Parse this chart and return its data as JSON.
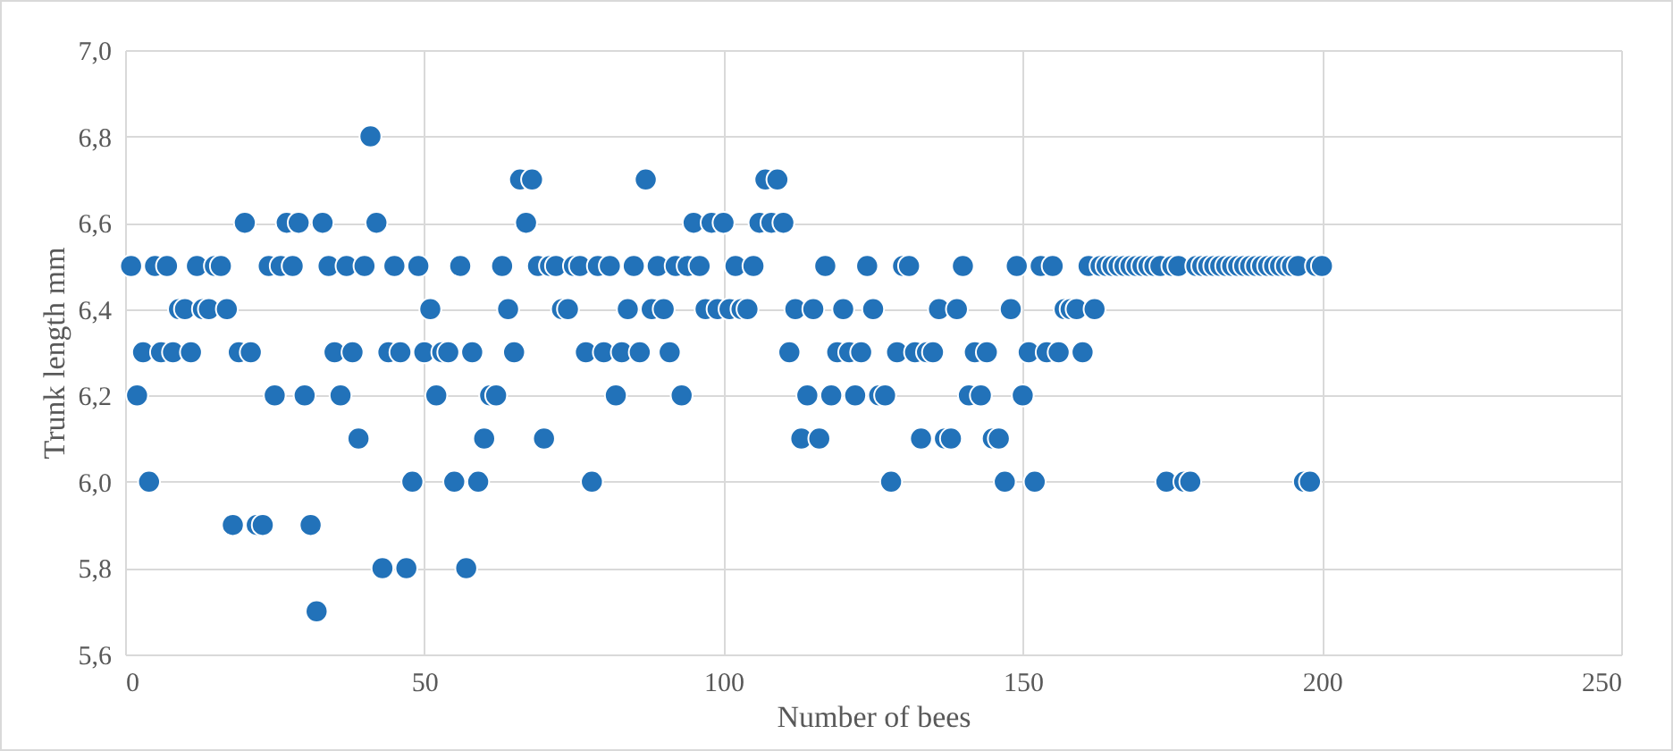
{
  "chart_data": {
    "type": "scatter",
    "xlabel": "Number of bees",
    "ylabel": "Trunk length mm",
    "x": [
      1,
      2,
      3,
      4,
      5,
      6,
      7,
      8,
      9,
      10,
      11,
      12,
      13,
      14,
      15,
      16,
      17,
      18,
      19,
      20,
      21,
      22,
      23,
      24,
      25,
      26,
      27,
      28,
      29,
      30,
      31,
      32,
      33,
      34,
      35,
      36,
      37,
      38,
      39,
      40,
      41,
      42,
      43,
      44,
      45,
      46,
      47,
      48,
      49,
      50,
      51,
      52,
      53,
      54,
      55,
      56,
      57,
      58,
      59,
      60,
      61,
      62,
      63,
      64,
      65,
      66,
      67,
      68,
      69,
      70,
      71,
      72,
      73,
      74,
      75,
      76,
      77,
      78,
      79,
      80,
      81,
      82,
      83,
      84,
      85,
      86,
      87,
      88,
      89,
      90,
      91,
      92,
      93,
      94,
      95,
      96,
      97,
      98,
      99,
      100,
      101,
      102,
      103,
      104,
      105,
      106,
      107,
      108,
      109,
      110,
      111,
      112,
      113,
      114,
      115,
      116,
      117,
      118,
      119,
      120,
      121,
      122,
      123,
      124,
      125,
      126,
      127,
      128,
      129,
      130,
      131,
      132,
      133,
      134,
      135,
      136,
      137,
      138,
      139,
      140,
      141,
      142,
      143,
      144,
      145,
      146,
      147,
      148,
      149,
      150,
      151,
      152,
      153,
      154,
      155,
      156,
      157,
      158,
      159,
      160,
      161,
      162,
      163,
      164,
      165,
      166,
      167,
      168,
      169,
      170,
      171,
      172,
      173,
      174,
      175,
      176,
      177,
      178,
      179,
      180,
      181,
      182,
      183,
      184,
      185,
      186,
      187,
      188,
      189,
      190,
      191,
      192,
      193,
      194,
      195,
      196,
      197,
      198,
      199,
      200
    ],
    "series": [
      {
        "color": "#2272b9",
        "values": [
          6.5,
          6.2,
          6.3,
          6.0,
          6.5,
          6.3,
          6.5,
          6.3,
          6.4,
          6.4,
          6.3,
          6.5,
          6.4,
          6.4,
          6.5,
          6.5,
          6.4,
          5.9,
          6.3,
          6.6,
          6.3,
          5.9,
          5.9,
          6.5,
          6.2,
          6.5,
          6.6,
          6.5,
          6.6,
          6.2,
          5.9,
          5.7,
          6.6,
          6.5,
          6.3,
          6.2,
          6.5,
          6.3,
          6.1,
          6.5,
          6.8,
          6.6,
          5.8,
          6.3,
          6.5,
          6.3,
          5.8,
          6.0,
          6.5,
          6.3,
          6.4,
          6.2,
          6.3,
          6.3,
          6.0,
          6.5,
          5.8,
          6.3,
          6.0,
          6.1,
          6.2,
          6.2,
          6.5,
          6.4,
          6.3,
          6.7,
          6.6,
          6.7,
          6.5,
          6.1,
          6.5,
          6.5,
          6.4,
          6.4,
          6.5,
          6.5,
          6.3,
          6.0,
          6.5,
          6.3,
          6.5,
          6.2,
          6.3,
          6.4,
          6.5,
          6.3,
          6.7,
          6.4,
          6.5,
          6.4,
          6.3,
          6.5,
          6.2,
          6.5,
          6.6,
          6.5,
          6.4,
          6.6,
          6.4,
          6.6,
          6.4,
          6.5,
          6.4,
          6.4,
          6.5,
          6.6,
          6.7,
          6.6,
          6.7,
          6.6,
          6.3,
          6.4,
          6.1,
          6.2,
          6.4,
          6.1,
          6.5,
          6.2,
          6.3,
          6.4,
          6.3,
          6.2,
          6.3,
          6.5,
          6.4,
          6.2,
          6.2,
          6.0,
          6.3,
          6.5,
          6.5,
          6.3,
          6.1,
          6.3,
          6.3,
          6.4,
          6.1,
          6.1,
          6.4,
          6.5,
          6.2,
          6.3,
          6.2,
          6.3,
          6.1,
          6.1,
          6.0,
          6.4,
          6.5,
          6.2,
          6.3,
          6.0,
          6.5,
          6.3,
          6.5,
          6.3,
          6.4,
          6.4,
          6.4,
          6.3,
          6.5,
          6.4,
          6.5,
          6.5,
          6.5,
          6.5,
          6.5,
          6.5,
          6.5,
          6.5,
          6.5,
          6.5,
          6.5,
          6.0,
          6.5,
          6.5,
          6.0,
          6.0,
          6.5,
          6.5,
          6.5,
          6.5,
          6.5,
          6.5,
          6.5,
          6.5,
          6.5,
          6.5,
          6.5,
          6.5,
          6.5,
          6.5,
          6.5,
          6.5,
          6.5,
          6.5,
          6.0,
          6.0,
          6.5,
          6.5
        ]
      }
    ],
    "xlim": [
      0,
      250
    ],
    "xticks": [
      0,
      50,
      100,
      150,
      200,
      250
    ],
    "ylim": [
      5.6,
      7.0
    ],
    "yticks": [
      {
        "value": 5.6,
        "label": "5,6"
      },
      {
        "value": 5.8,
        "label": "5,8"
      },
      {
        "value": 6.0,
        "label": "6,0"
      },
      {
        "value": 6.2,
        "label": "6,2"
      },
      {
        "value": 6.4,
        "label": "6,4"
      },
      {
        "value": 6.6,
        "label": "6,6"
      },
      {
        "value": 6.8,
        "label": "6,8"
      },
      {
        "value": 7.0,
        "label": "7,0"
      }
    ],
    "grid": true,
    "marker": "circle"
  }
}
